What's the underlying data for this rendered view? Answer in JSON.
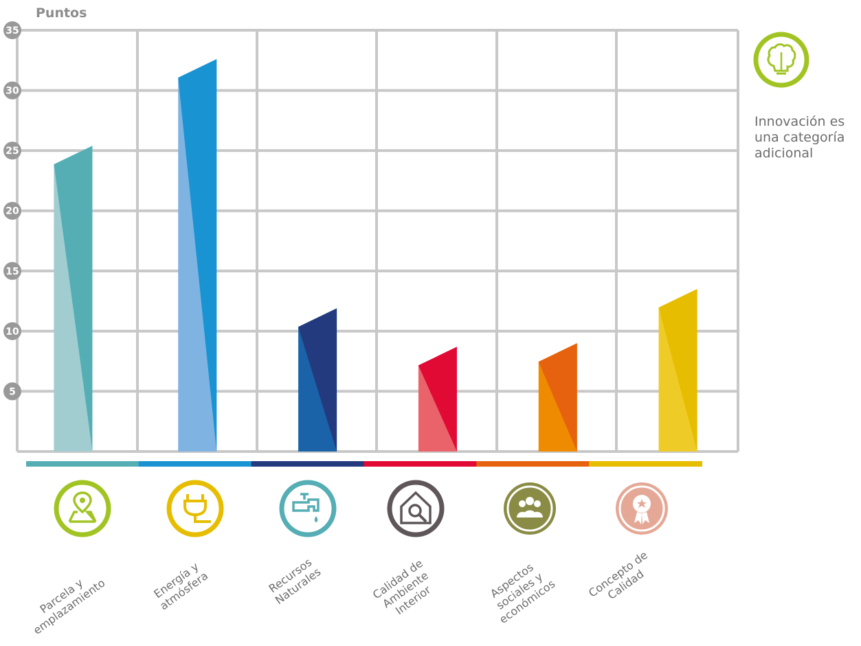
{
  "y_axis_label": "Puntos",
  "innovation_note": [
    "Innovación es",
    "una categoría",
    "adicional"
  ],
  "chart_data": {
    "type": "bar",
    "title": "",
    "ylabel": "Puntos",
    "ylim": [
      0,
      35
    ],
    "yticks": [
      5,
      10,
      15,
      20,
      25,
      30,
      35
    ],
    "grid": true,
    "categories": [
      "Parcela y emplazamiento",
      "Energía y atmósfera",
      "Recursos Naturales",
      "Calidad de Ambiente Interior",
      "Aspectos sociales y económicos",
      "Concepto de Calidad"
    ],
    "values": [
      25.4,
      32.6,
      11.9,
      8.7,
      9.0,
      13.5
    ]
  },
  "categories": [
    {
      "label_lines": [
        "Parcela y",
        "emplazamiento"
      ],
      "icon": "map-pin-icon",
      "color": "#55aeb4",
      "light": "#a2cdd0",
      "mid": "#55aeb4",
      "icon_color": "#a2c423"
    },
    {
      "label_lines": [
        "Energía y",
        "atmósfera"
      ],
      "icon": "plug-icon",
      "color": "#1a93d3",
      "light": "#7fb3e2",
      "mid": "#1a93d3",
      "icon_color": "#e6bd00"
    },
    {
      "label_lines": [
        "Recursos",
        "Naturales"
      ],
      "icon": "water-tap-icon",
      "color": "#233a7e",
      "light": "#1a63a8",
      "mid": "#233a7e",
      "icon_color": "#55aeb4"
    },
    {
      "label_lines": [
        "Calidad de",
        "Ambiente",
        "Interior"
      ],
      "icon": "home-inspect-icon",
      "color": "#e00a34",
      "light": "#ea636a",
      "mid": "#e00a34",
      "icon_color": "#5e5658"
    },
    {
      "label_lines": [
        "Aspectos",
        "sociales y",
        "económicos"
      ],
      "icon": "people-group-icon",
      "color": "#e7620f",
      "light": "#ef8b00",
      "mid": "#e7620f",
      "icon_color": "#8a8c45"
    },
    {
      "label_lines": [
        "Concepto de",
        "Calidad"
      ],
      "icon": "award-ribbon-icon",
      "color": "#e6bd00",
      "light": "#efcb27",
      "mid": "#e6bd00",
      "icon_color": "#e6a896"
    }
  ],
  "innovation_icon": "brain-bulb-icon",
  "colors": {
    "grid": "#c8c8c8",
    "tick_circle": "#999999",
    "innovation": "#a2c423"
  }
}
